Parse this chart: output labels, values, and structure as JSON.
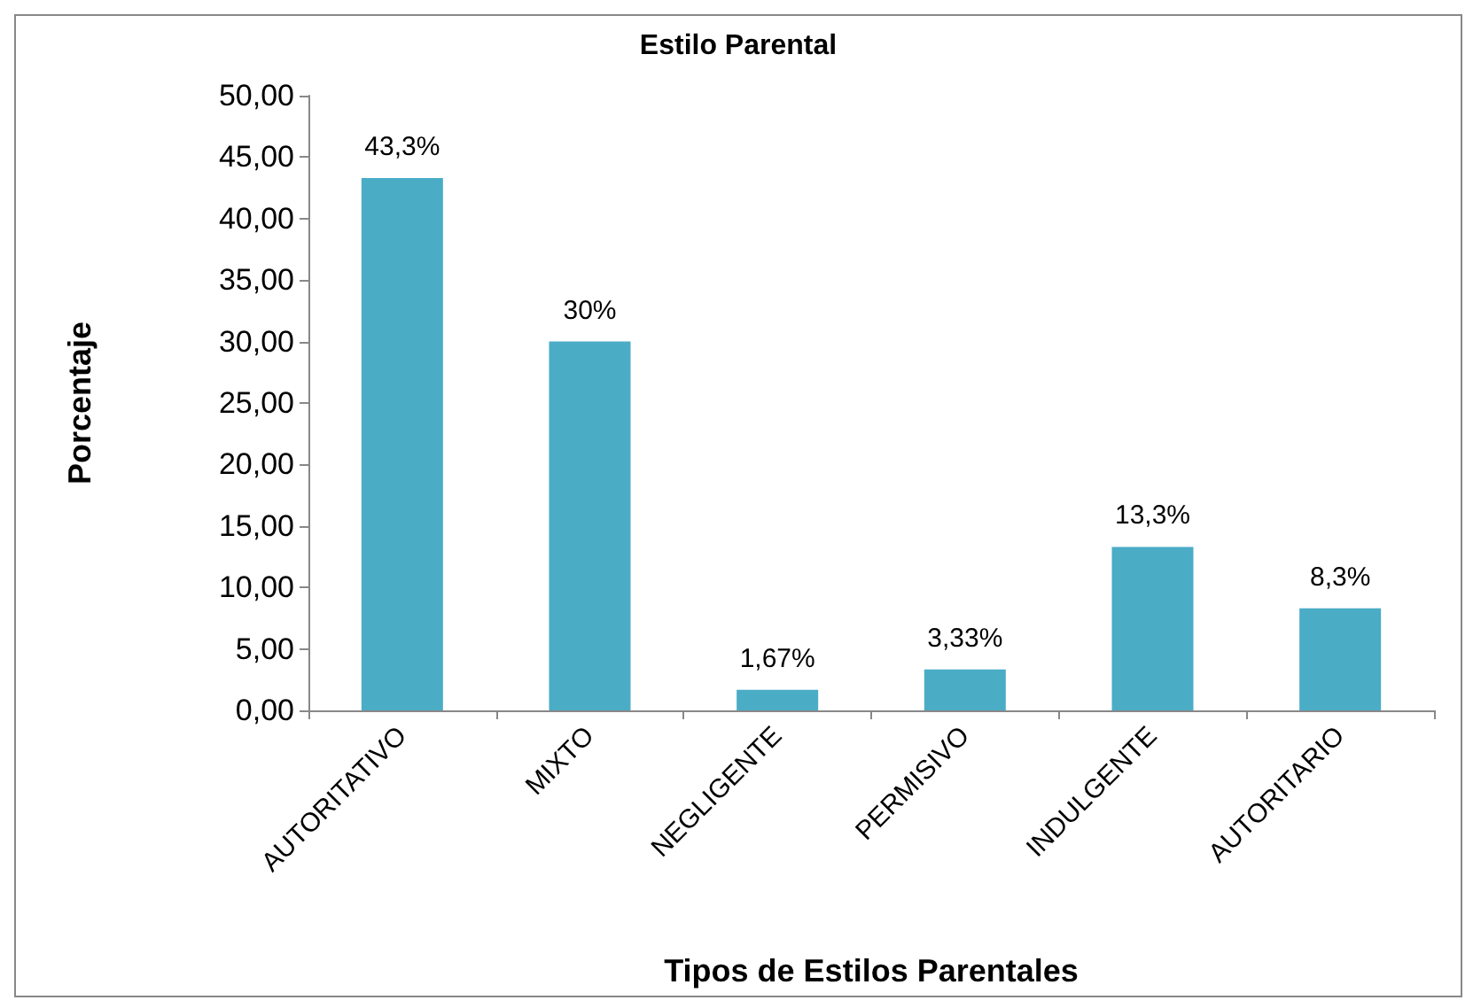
{
  "chart_data": {
    "type": "bar",
    "title": "Estilo Parental",
    "xlabel": "Tipos de Estilos Parentales",
    "ylabel": "Porcentaje",
    "categories": [
      "AUTORITATIVO",
      "MIXTO",
      "NEGLIGENTE",
      "PERMISIVO",
      "INDULGENTE",
      "AUTORITARIO"
    ],
    "values": [
      43.3,
      30,
      1.67,
      3.33,
      13.3,
      8.3
    ],
    "value_labels": [
      "43,3%",
      "30%",
      "1,67%",
      "3,33%",
      "13,3%",
      "8,3%"
    ],
    "color": "#4bacc6",
    "ylim": [
      0,
      50
    ],
    "yticks": [
      {
        "value": 0,
        "label": "0,00"
      },
      {
        "value": 5,
        "label": "5,00"
      },
      {
        "value": 10,
        "label": "10,00"
      },
      {
        "value": 15,
        "label": "15,00"
      },
      {
        "value": 20,
        "label": "20,00"
      },
      {
        "value": 25,
        "label": "25,00"
      },
      {
        "value": 30,
        "label": "30,00"
      },
      {
        "value": 35,
        "label": "35,00"
      },
      {
        "value": 40,
        "label": "40,00"
      },
      {
        "value": 45,
        "label": "45,00"
      },
      {
        "value": 50,
        "label": "50,00"
      }
    ],
    "grid": false
  }
}
